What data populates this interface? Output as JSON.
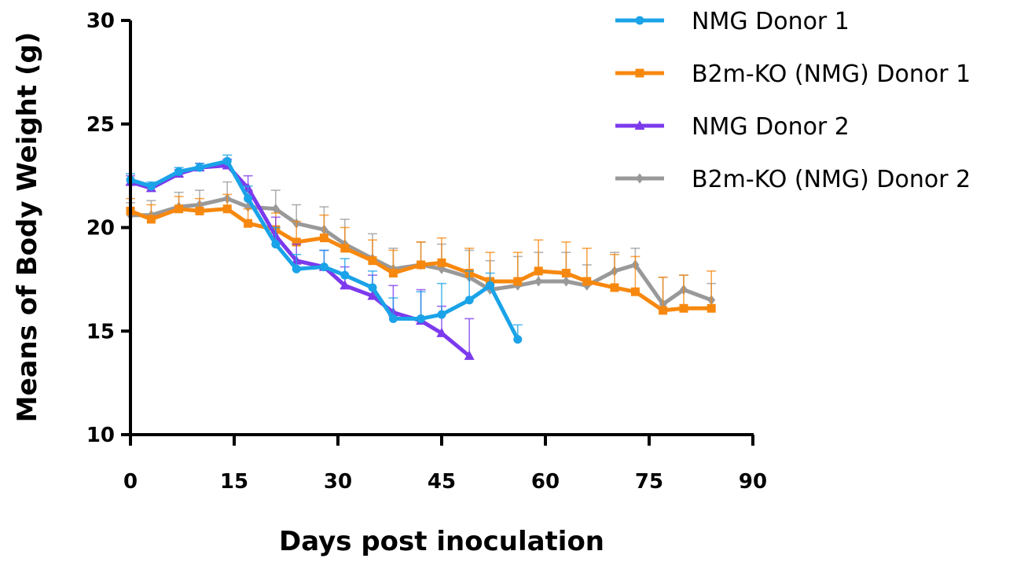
{
  "chart_data": {
    "type": "line",
    "xlabel": "Days post inoculation",
    "ylabel": "Means of Body Weight (g)",
    "xlim": [
      0,
      90
    ],
    "ylim": [
      10,
      30
    ],
    "xticks": [
      0,
      15,
      30,
      45,
      60,
      75,
      90
    ],
    "yticks": [
      10,
      15,
      20,
      25,
      30
    ],
    "legend_position": "top-right",
    "series": [
      {
        "name": "NMG Donor 1",
        "color": "#1aa3e8",
        "marker": "circle",
        "x": [
          0,
          3,
          7,
          10,
          14,
          17,
          21,
          24,
          28,
          31,
          35,
          38,
          42,
          45,
          49,
          52,
          56
        ],
        "y": [
          22.3,
          22.0,
          22.7,
          22.9,
          23.2,
          21.4,
          19.2,
          18.0,
          18.1,
          17.7,
          17.1,
          15.6,
          15.6,
          15.8,
          16.5,
          17.2,
          14.6
        ],
        "err": [
          0.3,
          0.2,
          0.2,
          0.2,
          0.3,
          0.6,
          0.8,
          0.7,
          0.8,
          0.8,
          0.8,
          1.0,
          1.3,
          1.5,
          1.4,
          0.6,
          0.7
        ]
      },
      {
        "name": "B2m-KO (NMG) Donor 1",
        "color": "#f7880f",
        "marker": "square",
        "x": [
          0,
          3,
          7,
          10,
          14,
          17,
          21,
          24,
          28,
          31,
          35,
          38,
          42,
          45,
          49,
          52,
          56,
          59,
          63,
          66,
          70,
          73,
          77,
          80,
          84
        ],
        "y": [
          20.8,
          20.4,
          20.9,
          20.8,
          20.9,
          20.2,
          19.9,
          19.3,
          19.5,
          19.0,
          18.4,
          17.8,
          18.2,
          18.3,
          17.8,
          17.4,
          17.4,
          17.9,
          17.8,
          17.4,
          17.1,
          16.9,
          16.0,
          16.1,
          16.1
        ],
        "err": [
          0.6,
          0.7,
          0.6,
          0.6,
          0.7,
          0.7,
          0.8,
          1.0,
          1.1,
          1.0,
          1.0,
          1.1,
          1.1,
          1.2,
          1.2,
          1.4,
          1.4,
          1.5,
          1.5,
          1.6,
          1.6,
          1.7,
          1.6,
          1.6,
          1.8
        ]
      },
      {
        "name": "NMG Donor 2",
        "color": "#7c3aed",
        "marker": "triangle",
        "x": [
          0,
          3,
          7,
          10,
          14,
          17,
          21,
          24,
          28,
          31,
          35,
          38,
          42,
          45,
          49
        ],
        "y": [
          22.2,
          21.9,
          22.6,
          22.9,
          23.0,
          21.9,
          19.6,
          18.4,
          18.1,
          17.2,
          16.7,
          15.9,
          15.5,
          14.9,
          13.8
        ],
        "err": [
          0.3,
          0.2,
          0.2,
          0.2,
          0.3,
          0.6,
          0.9,
          0.8,
          0.8,
          0.9,
          1.0,
          1.3,
          1.5,
          1.3,
          1.8
        ]
      },
      {
        "name": "B2m-KO (NMG) Donor 2",
        "color": "#999999",
        "marker": "diamond",
        "x": [
          0,
          3,
          7,
          10,
          14,
          17,
          21,
          24,
          28,
          31,
          35,
          38,
          42,
          45,
          49,
          52,
          56,
          59,
          63,
          66,
          70,
          73,
          77,
          80,
          84
        ],
        "y": [
          20.6,
          20.6,
          21.0,
          21.1,
          21.4,
          21.0,
          20.9,
          20.2,
          19.9,
          19.2,
          18.5,
          18.0,
          18.2,
          18.0,
          17.6,
          17.0,
          17.2,
          17.4,
          17.4,
          17.2,
          17.9,
          18.2,
          16.3,
          17.0,
          16.5
        ],
        "err": [
          0.6,
          0.7,
          0.7,
          0.7,
          0.8,
          0.8,
          0.9,
          0.9,
          1.1,
          1.2,
          1.2,
          1.0,
          1.1,
          1.2,
          1.3,
          1.4,
          1.4,
          1.4,
          1.4,
          1.0,
          0.9,
          0.8,
          1.3,
          0.7,
          0.8
        ]
      }
    ]
  }
}
